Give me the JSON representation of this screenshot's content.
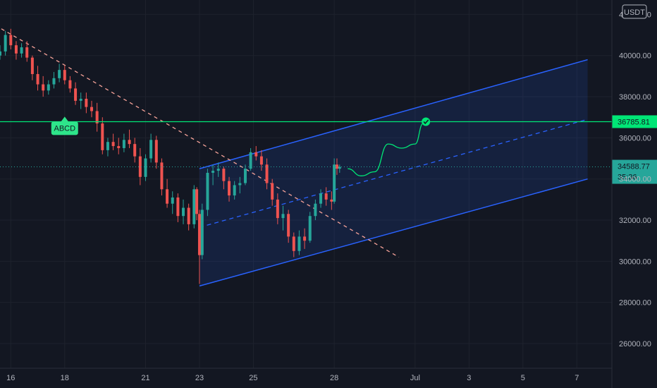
{
  "chart_data": {
    "type": "candlestick",
    "currency": "USDT",
    "ylim": [
      24800,
      42700
    ],
    "y_ticks": [
      "26000.00",
      "28000.00",
      "30000.00",
      "32000.00",
      "34000.00",
      "36000.00",
      "38000.00",
      "40000.00",
      "42000.00"
    ],
    "x_ticks": [
      {
        "day": 16,
        "label": "16"
      },
      {
        "day": 18,
        "label": "18"
      },
      {
        "day": 21,
        "label": "21"
      },
      {
        "day": 23,
        "label": "23"
      },
      {
        "day": 25,
        "label": "25"
      },
      {
        "day": 28,
        "label": "28"
      },
      {
        "day": 31,
        "label": "Jul"
      },
      {
        "day": 33,
        "label": "3"
      },
      {
        "day": 35,
        "label": "5"
      },
      {
        "day": 37,
        "label": "7"
      }
    ],
    "xlim": [
      15.6,
      38.3
    ],
    "candles": [
      [
        15.6,
        40000,
        40500,
        39800,
        40200
      ],
      [
        15.8,
        40200,
        41200,
        40000,
        41000
      ],
      [
        16.0,
        41000,
        41300,
        40300,
        40500
      ],
      [
        16.2,
        40500,
        40700,
        39800,
        40100
      ],
      [
        16.4,
        40100,
        40600,
        39900,
        40400
      ],
      [
        16.6,
        40400,
        40700,
        39700,
        39900
      ],
      [
        16.8,
        39900,
        40000,
        38800,
        39100
      ],
      [
        17.0,
        39100,
        39500,
        38300,
        38600
      ],
      [
        17.2,
        38600,
        39000,
        38000,
        38300
      ],
      [
        17.4,
        38300,
        38800,
        38100,
        38600
      ],
      [
        17.6,
        38600,
        39200,
        38400,
        38900
      ],
      [
        17.8,
        38900,
        39600,
        38700,
        39300
      ],
      [
        18.0,
        39300,
        39500,
        38600,
        38800
      ],
      [
        18.2,
        38800,
        39000,
        38200,
        38400
      ],
      [
        18.4,
        38400,
        38700,
        37600,
        37800
      ],
      [
        18.6,
        37800,
        38200,
        37400,
        37900
      ],
      [
        18.8,
        37900,
        38200,
        37200,
        37500
      ],
      [
        19.0,
        37500,
        37800,
        37000,
        37300
      ],
      [
        19.2,
        37300,
        37700,
        36300,
        36700
      ],
      [
        19.4,
        36700,
        37000,
        35200,
        35400
      ],
      [
        19.6,
        35400,
        36000,
        35100,
        35800
      ],
      [
        19.8,
        35800,
        36200,
        35400,
        35600
      ],
      [
        20.0,
        35600,
        36000,
        35200,
        35500
      ],
      [
        20.2,
        35500,
        36200,
        35300,
        35900
      ],
      [
        20.4,
        35900,
        36400,
        35500,
        35700
      ],
      [
        20.6,
        35700,
        36000,
        34800,
        35100
      ],
      [
        20.8,
        35100,
        35500,
        33700,
        34100
      ],
      [
        21.0,
        34100,
        35200,
        33900,
        35000
      ],
      [
        21.2,
        35000,
        36200,
        34800,
        35900
      ],
      [
        21.4,
        35900,
        36100,
        34500,
        34800
      ],
      [
        21.6,
        34800,
        35000,
        33200,
        33500
      ],
      [
        21.8,
        33500,
        34000,
        32600,
        32800
      ],
      [
        22.0,
        32800,
        33400,
        32300,
        33100
      ],
      [
        22.2,
        33100,
        33300,
        31900,
        32200
      ],
      [
        22.4,
        32200,
        33000,
        31800,
        32600
      ],
      [
        22.6,
        32600,
        32800,
        31500,
        31800
      ],
      [
        22.8,
        31800,
        33700,
        31600,
        33500
      ],
      [
        22.9,
        33500,
        33600,
        32000,
        32300
      ],
      [
        23.0,
        32300,
        32500,
        28900,
        30300
      ],
      [
        23.1,
        30300,
        32800,
        30100,
        32500
      ],
      [
        23.3,
        32500,
        34500,
        32200,
        34300
      ],
      [
        23.5,
        34300,
        34700,
        33700,
        34400
      ],
      [
        23.7,
        34400,
        34800,
        34100,
        34500
      ],
      [
        23.9,
        34500,
        34600,
        33500,
        33900
      ],
      [
        24.1,
        33900,
        34100,
        32900,
        33200
      ],
      [
        24.3,
        33200,
        33900,
        33000,
        33700
      ],
      [
        24.5,
        33700,
        34100,
        33300,
        33800
      ],
      [
        24.7,
        33800,
        34700,
        33700,
        34500
      ],
      [
        24.9,
        34500,
        35500,
        34400,
        35300
      ],
      [
        25.1,
        35300,
        35600,
        34900,
        35100
      ],
      [
        25.3,
        35100,
        35400,
        34400,
        34700
      ],
      [
        25.5,
        34700,
        35000,
        33500,
        33800
      ],
      [
        25.7,
        33800,
        34000,
        32700,
        33000
      ],
      [
        25.9,
        33000,
        33300,
        31800,
        32100
      ],
      [
        26.1,
        32100,
        32700,
        31500,
        32300
      ],
      [
        26.3,
        32300,
        32500,
        30900,
        31200
      ],
      [
        26.5,
        31200,
        31400,
        30200,
        30500
      ],
      [
        26.7,
        30500,
        31500,
        30300,
        31200
      ],
      [
        26.9,
        31200,
        31600,
        30600,
        31000
      ],
      [
        27.1,
        31000,
        32400,
        30900,
        32200
      ],
      [
        27.3,
        32200,
        33000,
        32000,
        32800
      ],
      [
        27.5,
        32800,
        33500,
        32600,
        33300
      ],
      [
        27.7,
        33300,
        33600,
        32700,
        33000
      ],
      [
        27.9,
        33000,
        33400,
        32500,
        32900
      ],
      [
        28.0,
        32900,
        35000,
        32800,
        34700
      ],
      [
        28.1,
        34700,
        35000,
        34200,
        34500
      ],
      [
        28.2,
        34500,
        34700,
        34300,
        34589
      ]
    ],
    "price_line": {
      "value": "34588.77",
      "countdown": "35:36",
      "color": "#26a69a"
    },
    "horizontal_level": {
      "value": "36785.81",
      "color": "#00e676"
    },
    "abcd_label": {
      "text": "ABCD",
      "day": 18.0,
      "price": 36720
    },
    "downtrend_line": {
      "start": [
        15.65,
        41300
      ],
      "end": [
        30.4,
        30200
      ],
      "color": "#f7a399"
    },
    "channel": {
      "upper_start": [
        23.0,
        34500
      ],
      "upper_end": [
        37.4,
        39800
      ],
      "lower_start": [
        23.0,
        28800
      ],
      "lower_end": [
        37.4,
        34000
      ],
      "mid_start": [
        23.0,
        31650
      ],
      "mid_end": [
        37.4,
        36900
      ],
      "color": "#2962ff"
    },
    "projection_path": [
      [
        28.5,
        34500
      ],
      [
        29.0,
        34150
      ],
      [
        29.5,
        34350
      ],
      [
        30.0,
        35700
      ],
      [
        30.5,
        35500
      ],
      [
        31.0,
        35700
      ],
      [
        31.3,
        36700
      ]
    ],
    "target_marker": {
      "day": 31.4,
      "price": 36785.81
    }
  }
}
